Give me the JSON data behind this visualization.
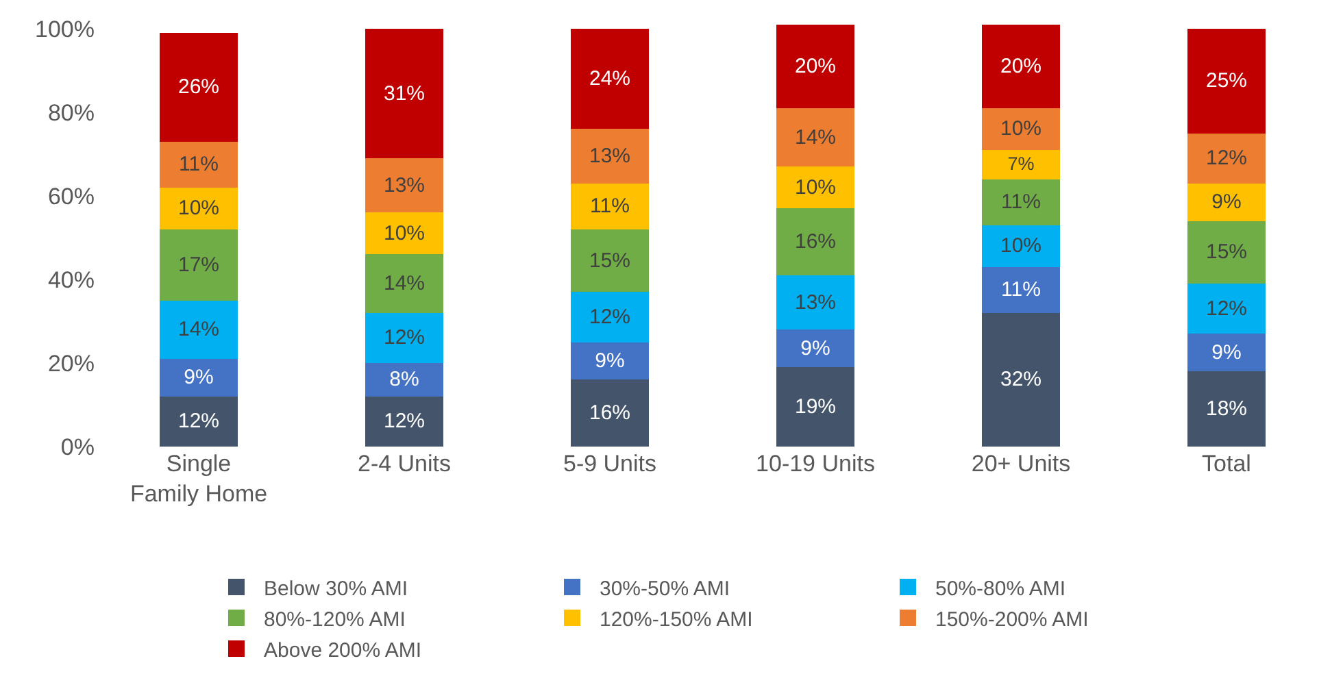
{
  "chart_data": {
    "type": "bar",
    "stacked": true,
    "categories": [
      "Single Family Home",
      "2-4 Units",
      "5-9 Units",
      "10-19 Units",
      "20+ Units",
      "Total"
    ],
    "series": [
      {
        "name": "Below 30% AMI",
        "color": "#44546a",
        "values": [
          12,
          12,
          16,
          19,
          32,
          18
        ],
        "value_labels": [
          "12%",
          "12%",
          "16%",
          "19%",
          "32%",
          "18%"
        ]
      },
      {
        "name": "30%-50% AMI",
        "color": "#4472c4",
        "values": [
          9,
          8,
          9,
          9,
          11,
          9
        ],
        "value_labels": [
          "9%",
          "8%",
          "9%",
          "9%",
          "11%",
          "9%"
        ]
      },
      {
        "name": "50%-80% AMI",
        "color": "#00b0f0",
        "values": [
          14,
          12,
          12,
          13,
          10,
          12
        ],
        "value_labels": [
          "14%",
          "12%",
          "12%",
          "13%",
          "10%",
          "12%"
        ]
      },
      {
        "name": "80%-120% AMI",
        "color": "#70ad47",
        "values": [
          17,
          14,
          15,
          16,
          11,
          15
        ],
        "value_labels": [
          "17%",
          "14%",
          "15%",
          "16%",
          "11%",
          "15%"
        ]
      },
      {
        "name": "120%-150% AMI",
        "color": "#ffc000",
        "values": [
          10,
          10,
          11,
          10,
          7,
          9
        ],
        "value_labels": [
          "10%",
          "10%",
          "11%",
          "10%",
          "7%",
          "9%"
        ]
      },
      {
        "name": "150%-200% AMI",
        "color": "#ed7d31",
        "values": [
          11,
          13,
          13,
          14,
          10,
          12
        ],
        "value_labels": [
          "11%",
          "13%",
          "13%",
          "14%",
          "10%",
          "12%"
        ]
      },
      {
        "name": "Above 200% AMI",
        "color": "#c00000",
        "values": [
          26,
          31,
          24,
          20,
          20,
          25
        ],
        "value_labels": [
          "26%",
          "31%",
          "24%",
          "20%",
          "20%",
          "25%"
        ]
      }
    ],
    "ylim": [
      0,
      101
    ],
    "yticks": [
      {
        "value": 0,
        "label": "0%"
      },
      {
        "value": 20,
        "label": "20%"
      },
      {
        "value": 40,
        "label": "40%"
      },
      {
        "value": 60,
        "label": "60%"
      },
      {
        "value": 80,
        "label": "80%"
      },
      {
        "value": 100,
        "label": "100%"
      }
    ],
    "grid": false,
    "legend": "bottom"
  }
}
